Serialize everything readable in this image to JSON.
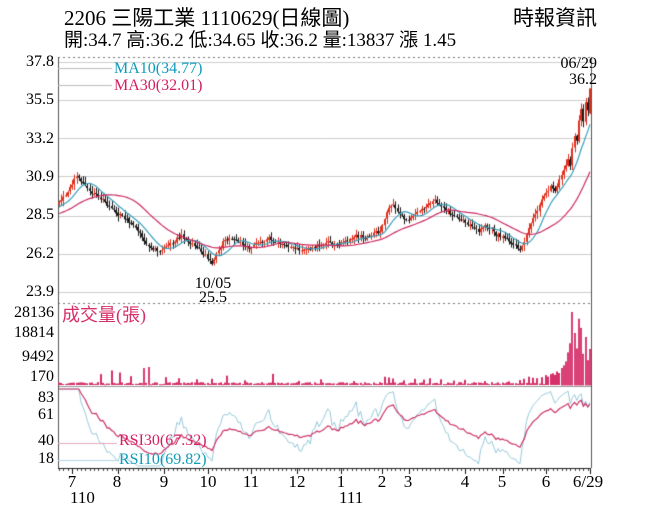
{
  "header": {
    "title": "2206 三陽工業 1110629(日線圖)",
    "source": "時報資訊",
    "quote_line": "開:34.7 高:36.2 低:34.65 收:36.2 量:13837 漲 1.45"
  },
  "colors": {
    "up_candle": "#e0301e",
    "down_candle": "#1a1a1a",
    "ma10_line": "#3aa0bd",
    "ma30_line": "#cc2a62",
    "ma10_text": "#0f9cba",
    "ma30_text": "#d51e62",
    "volume_bar": "#d6306a",
    "volume_bar_light": "#ea86aa",
    "rsi10_line": "#97c9da",
    "rsi30_line": "#cc3366",
    "grid": "#cccccc",
    "axis": "#555555",
    "key_gray": "#bbbbbb",
    "key_pink": "#e4a8be",
    "key_cyan": "#b0d6e2"
  },
  "main_chart": {
    "y_ticks": [
      "37.8",
      "35.5",
      "33.2",
      "30.9",
      "28.5",
      "26.2",
      "23.9"
    ],
    "legend": {
      "ma10": "MA10(34.77)",
      "ma30": "MA30(32.01)"
    },
    "annotations": {
      "high_date": "06/29",
      "high_value": "36.2",
      "low_date": "10/05",
      "low_value": "25.5"
    }
  },
  "volume_chart": {
    "label": "成交量(張)",
    "y_ticks": [
      "28136",
      "18814",
      "9492",
      "170"
    ]
  },
  "rsi_chart": {
    "y_ticks": [
      "83",
      "61",
      "40",
      "18"
    ],
    "legend": {
      "rsi30": "RSI30(67.32)",
      "rsi10": "RSI10(69.82)"
    }
  },
  "x_axis": {
    "months": [
      "7",
      "8",
      "9",
      "10",
      "11",
      "12",
      "1",
      "2",
      "3",
      "4",
      "5",
      "6",
      "6/29"
    ],
    "years": [
      "110",
      "111"
    ]
  },
  "chart_data": {
    "type": "candlestick",
    "panes": [
      "price",
      "volume",
      "rsi"
    ],
    "num_days": 244,
    "price_ylim": [
      23.9,
      37.8
    ],
    "price_y_ticks": [
      37.8,
      35.5,
      33.2,
      30.9,
      28.5,
      26.2,
      23.9
    ],
    "volume_y_ticks": [
      28136,
      18814,
      9492,
      170
    ],
    "volume_max": 28136,
    "rsi_y_ticks": [
      83,
      61,
      40,
      18
    ],
    "month_tick_days": [
      6,
      27,
      48,
      68,
      88,
      109,
      129,
      148,
      160,
      186,
      203,
      223,
      243
    ],
    "month_tick_labels": [
      "7",
      "8",
      "9",
      "10",
      "11",
      "12",
      "1",
      "2",
      "3",
      "4",
      "5",
      "6",
      "6/29"
    ],
    "year_labels": [
      {
        "label": "110",
        "at_month_index": 0
      },
      {
        "label": "111",
        "at_month_index": 6
      }
    ],
    "close_keypoints": [
      [
        0,
        29.3
      ],
      [
        2,
        29.6
      ],
      [
        5,
        30.2
      ],
      [
        8,
        30.9
      ],
      [
        11,
        30.4
      ],
      [
        15,
        29.9
      ],
      [
        20,
        29.5
      ],
      [
        24,
        28.9
      ],
      [
        27,
        28.6
      ],
      [
        31,
        28.3
      ],
      [
        35,
        27.8
      ],
      [
        38,
        27.2
      ],
      [
        42,
        26.6
      ],
      [
        45,
        26.4
      ],
      [
        48,
        26.5
      ],
      [
        52,
        26.9
      ],
      [
        56,
        27.3
      ],
      [
        59,
        27.0
      ],
      [
        62,
        26.7
      ],
      [
        65,
        26.4
      ],
      [
        67,
        26.1
      ],
      [
        70,
        25.6
      ],
      [
        72,
        26.3
      ],
      [
        75,
        26.9
      ],
      [
        78,
        27.2
      ],
      [
        82,
        27.0
      ],
      [
        85,
        26.7
      ],
      [
        88,
        26.6
      ],
      [
        92,
        26.9
      ],
      [
        96,
        27.1
      ],
      [
        100,
        26.9
      ],
      [
        104,
        26.7
      ],
      [
        108,
        26.5
      ],
      [
        112,
        26.4
      ],
      [
        116,
        26.6
      ],
      [
        120,
        26.8
      ],
      [
        124,
        26.9
      ],
      [
        128,
        26.8
      ],
      [
        132,
        27.0
      ],
      [
        136,
        27.3
      ],
      [
        140,
        27.2
      ],
      [
        144,
        27.4
      ],
      [
        147,
        27.6
      ],
      [
        149,
        28.3
      ],
      [
        151,
        29.0
      ],
      [
        153,
        29.2
      ],
      [
        155,
        28.8
      ],
      [
        158,
        28.4
      ],
      [
        160,
        28.2
      ],
      [
        163,
        28.6
      ],
      [
        166,
        28.9
      ],
      [
        169,
        29.2
      ],
      [
        172,
        29.4
      ],
      [
        175,
        29.1
      ],
      [
        178,
        28.8
      ],
      [
        181,
        28.5
      ],
      [
        184,
        28.3
      ],
      [
        186,
        28.1
      ],
      [
        189,
        27.8
      ],
      [
        192,
        27.6
      ],
      [
        195,
        27.9
      ],
      [
        198,
        27.7
      ],
      [
        200,
        27.4
      ],
      [
        203,
        27.2
      ],
      [
        206,
        27.0
      ],
      [
        209,
        26.7
      ],
      [
        211,
        26.4
      ],
      [
        213,
        26.9
      ],
      [
        215,
        27.8
      ],
      [
        217,
        28.4
      ],
      [
        219,
        28.9
      ],
      [
        221,
        29.4
      ],
      [
        223,
        29.8
      ],
      [
        225,
        30.3
      ],
      [
        227,
        30.0
      ],
      [
        229,
        30.6
      ],
      [
        231,
        31.2
      ],
      [
        233,
        32.0
      ],
      [
        234,
        31.5
      ],
      [
        235,
        32.6
      ],
      [
        236,
        33.4
      ],
      [
        237,
        33.0
      ],
      [
        238,
        34.2
      ],
      [
        239,
        34.9
      ],
      [
        240,
        34.3
      ],
      [
        241,
        35.3
      ],
      [
        242,
        34.8
      ],
      [
        243,
        36.2
      ]
    ],
    "volume_base_range": [
      250,
      1100
    ],
    "volume_spikes": {
      "19": 4200,
      "24": 5600,
      "28": 4800,
      "33": 3400,
      "39": 6500,
      "41": 6900,
      "49": 3000,
      "55": 2600,
      "63": 2200,
      "70": 2400,
      "77": 3600,
      "85": 1800,
      "98": 4300,
      "110": 1600,
      "120": 2200,
      "135": 1500,
      "149": 3200,
      "151": 2900,
      "153": 2500,
      "158": 1800,
      "163": 2400,
      "167": 2100,
      "170": 2600,
      "175": 2200,
      "181": 1700,
      "186": 2000,
      "195": 1500,
      "206": 1400,
      "211": 1900,
      "213": 2400,
      "215": 3200,
      "217": 2800,
      "219": 2600,
      "221": 3000,
      "223": 3800,
      "224": 3200,
      "225": 4200,
      "226": 4500,
      "227": 3900,
      "228": 5200,
      "229": 4600,
      "230": 6500,
      "231": 7500,
      "232": 9000,
      "233": 12500,
      "234": 16000,
      "235": 28136,
      "236": 20000,
      "237": 14000,
      "238": 25500,
      "239": 22000,
      "240": 12000,
      "241": 18500,
      "242": 9500,
      "243": 13837
    },
    "last_day": {
      "date": "1110629",
      "open": 34.7,
      "high": 36.2,
      "low": 34.65,
      "close": 36.2,
      "volume": 13837,
      "change": 1.45
    },
    "low_annotation": {
      "date": "10/05",
      "value": 25.5,
      "day": 70
    },
    "high_annotation": {
      "date": "06/29",
      "value": 36.2,
      "day": 243
    },
    "ma": {
      "ma10_last": 34.77,
      "ma30_last": 32.01
    },
    "rsi": {
      "rsi30_last": 67.32,
      "rsi10_last": 69.82
    }
  }
}
